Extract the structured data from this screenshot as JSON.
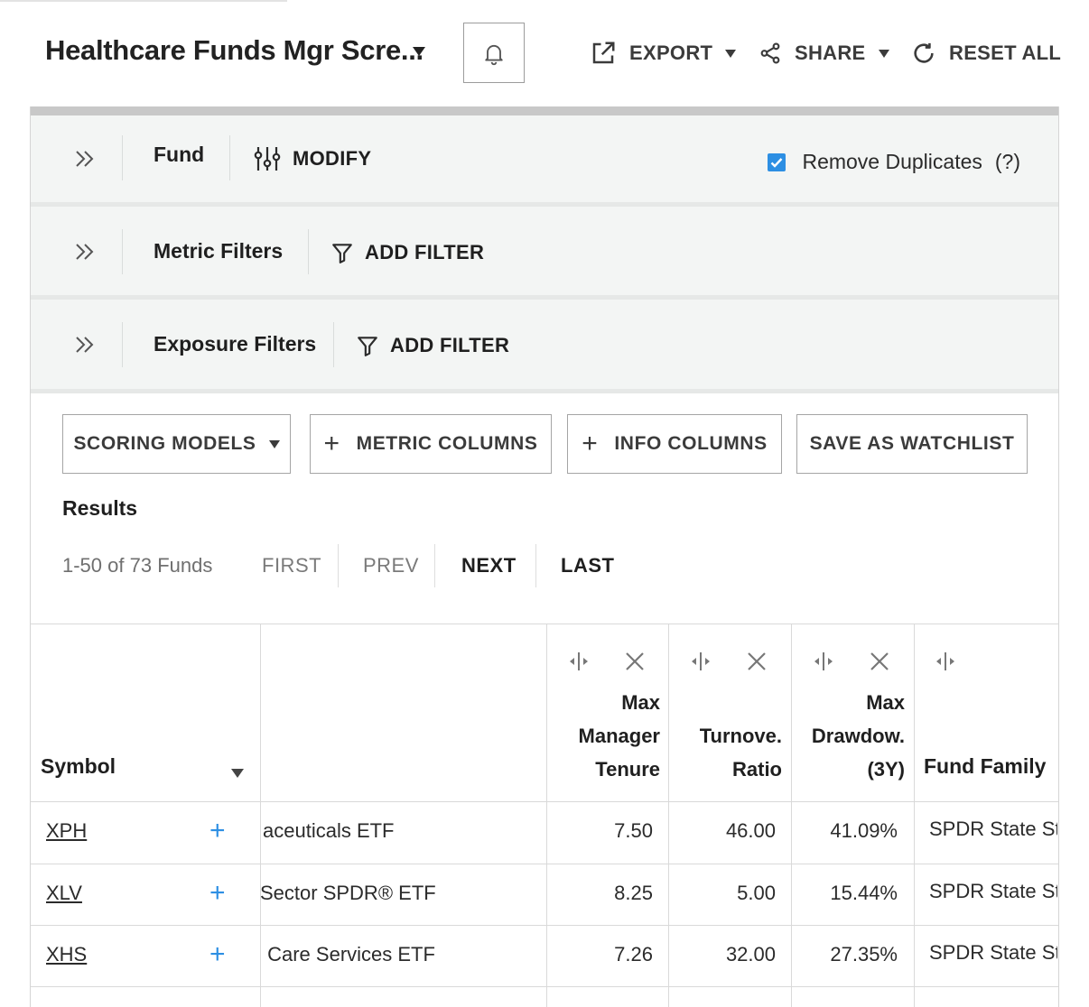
{
  "header": {
    "title": "Healthcare Funds Mgr Scre...",
    "export_label": "EXPORT",
    "share_label": "SHARE",
    "reset_label": "RESET ALL"
  },
  "filters": {
    "fund": {
      "label": "Fund",
      "action": "MODIFY"
    },
    "remove_duplicates": {
      "label": "Remove Duplicates",
      "checked": true,
      "help": "(?)"
    },
    "metric": {
      "label": "Metric Filters",
      "action": "ADD FILTER"
    },
    "exposure": {
      "label": "Exposure Filters",
      "action": "ADD FILTER"
    }
  },
  "toolbar": {
    "scoring_models": "SCORING MODELS",
    "metric_columns": "METRIC COLUMNS",
    "info_columns": "INFO COLUMNS",
    "save_watchlist": "SAVE AS WATCHLIST"
  },
  "results": {
    "title": "Results",
    "count": "1-50 of 73 Funds",
    "first": "FIRST",
    "prev": "PREV",
    "next": "NEXT",
    "last": "LAST"
  },
  "table": {
    "columns": {
      "symbol": "Symbol",
      "mgr_tenure": [
        "Max",
        "Manager",
        "Tenure"
      ],
      "turnover": [
        "Turnove.",
        "Ratio"
      ],
      "drawdown": [
        "Max",
        "Drawdow.",
        "(3Y)"
      ],
      "fund_family": "Fund Family"
    },
    "rows": [
      {
        "symbol": "XPH",
        "name": "aceuticals ETF",
        "tenure": "7.50",
        "turnover": "46.00",
        "drawdown": "41.09%",
        "family": "SPDR State Street"
      },
      {
        "symbol": "XLV",
        "name": "Sector SPDR® ETF",
        "tenure": "8.25",
        "turnover": "5.00",
        "drawdown": "15.44%",
        "family": "SPDR State Street"
      },
      {
        "symbol": "XHS",
        "name": " Care Services ETF",
        "tenure": "7.26",
        "turnover": "32.00",
        "drawdown": "27.35%",
        "family": "SPDR State Street"
      }
    ]
  },
  "colors": {
    "accent": "#2d8fe3",
    "panel_bg": "#f3f5f4"
  }
}
